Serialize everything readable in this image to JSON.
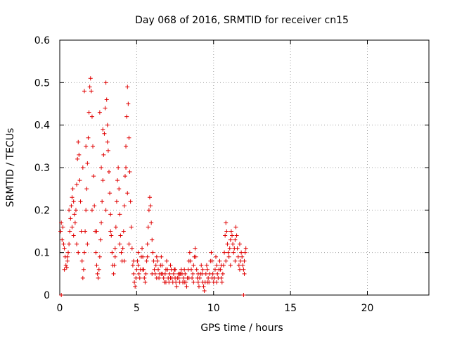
{
  "chart_data": {
    "type": "scatter",
    "title": "Day 068 of 2016, SRMTID for receiver cn15",
    "xlabel": "GPS time / hours",
    "ylabel": "SRMTID / TECUs",
    "xlim": [
      0,
      24
    ],
    "ylim": [
      0,
      0.6
    ],
    "grid": true,
    "marker": "+",
    "color": "#e00000",
    "x_ticks": [
      0,
      5,
      10,
      15,
      20
    ],
    "x_tick_labels": [
      "0",
      "5",
      "10",
      "15",
      "20"
    ],
    "y_ticks": [
      0,
      0.1,
      0.2,
      0.3,
      0.4,
      0.5,
      0.6
    ],
    "y_tick_labels": [
      "0",
      "0.1",
      "0.2",
      "0.3",
      "0.4",
      "0.5",
      "0.6"
    ],
    "series": [
      {
        "name": "SRMTID",
        "points": [
          [
            0.05,
            0.15
          ],
          [
            0.1,
            0.17
          ],
          [
            0.15,
            0.13
          ],
          [
            0.2,
            0.16
          ],
          [
            0.25,
            0.12
          ],
          [
            0.3,
            0.11
          ],
          [
            0.35,
            0.09
          ],
          [
            0.4,
            0.07
          ],
          [
            0.45,
            0.065
          ],
          [
            0.5,
            0.08
          ],
          [
            0.55,
            0.1
          ],
          [
            0.6,
            0.12
          ],
          [
            0.65,
            0.15
          ],
          [
            0.7,
            0.18
          ],
          [
            0.75,
            0.21
          ],
          [
            0.8,
            0.23
          ],
          [
            0.85,
            0.25
          ],
          [
            0.9,
            0.22
          ],
          [
            0.95,
            0.19
          ],
          [
            1.0,
            0.17
          ],
          [
            1.05,
            0.2
          ],
          [
            1.1,
            0.26
          ],
          [
            1.15,
            0.32
          ],
          [
            1.2,
            0.36
          ],
          [
            1.25,
            0.33
          ],
          [
            1.3,
            0.27
          ],
          [
            1.35,
            0.22
          ],
          [
            1.4,
            0.15
          ],
          [
            1.45,
            0.08
          ],
          [
            1.5,
            0.04
          ],
          [
            1.55,
            0.06
          ],
          [
            1.6,
            0.1
          ],
          [
            1.65,
            0.15
          ],
          [
            1.7,
            0.2
          ],
          [
            1.75,
            0.25
          ],
          [
            1.8,
            0.31
          ],
          [
            1.85,
            0.37
          ],
          [
            1.9,
            0.43
          ],
          [
            1.95,
            0.49
          ],
          [
            2.0,
            0.51
          ],
          [
            2.05,
            0.48
          ],
          [
            2.1,
            0.42
          ],
          [
            2.15,
            0.35
          ],
          [
            2.2,
            0.28
          ],
          [
            2.25,
            0.21
          ],
          [
            2.3,
            0.15
          ],
          [
            2.35,
            0.1
          ],
          [
            2.4,
            0.07
          ],
          [
            2.45,
            0.05
          ],
          [
            2.5,
            0.04
          ],
          [
            2.55,
            0.06
          ],
          [
            2.6,
            0.09
          ],
          [
            2.65,
            0.13
          ],
          [
            2.7,
            0.17
          ],
          [
            2.75,
            0.22
          ],
          [
            2.8,
            0.27
          ],
          [
            2.85,
            0.33
          ],
          [
            2.9,
            0.38
          ],
          [
            2.95,
            0.44
          ],
          [
            3.0,
            0.5
          ],
          [
            3.05,
            0.46
          ],
          [
            3.1,
            0.4
          ],
          [
            3.15,
            0.34
          ],
          [
            3.2,
            0.29
          ],
          [
            3.25,
            0.24
          ],
          [
            3.3,
            0.19
          ],
          [
            3.35,
            0.14
          ],
          [
            3.4,
            0.1
          ],
          [
            3.45,
            0.07
          ],
          [
            3.5,
            0.05
          ],
          [
            3.55,
            0.07
          ],
          [
            3.6,
            0.11
          ],
          [
            3.65,
            0.16
          ],
          [
            3.7,
            0.22
          ],
          [
            3.75,
            0.27
          ],
          [
            3.8,
            0.3
          ],
          [
            3.85,
            0.25
          ],
          [
            3.9,
            0.19
          ],
          [
            3.95,
            0.14
          ],
          [
            4.0,
            0.1
          ],
          [
            4.05,
            0.08
          ],
          [
            4.1,
            0.11
          ],
          [
            4.15,
            0.15
          ],
          [
            4.2,
            0.21
          ],
          [
            4.25,
            0.28
          ],
          [
            4.3,
            0.35
          ],
          [
            4.35,
            0.42
          ],
          [
            4.4,
            0.49
          ],
          [
            4.45,
            0.45
          ],
          [
            4.5,
            0.37
          ],
          [
            4.55,
            0.29
          ],
          [
            4.6,
            0.22
          ],
          [
            4.65,
            0.16
          ],
          [
            4.7,
            0.11
          ],
          [
            4.75,
            0.07
          ],
          [
            4.8,
            0.05
          ],
          [
            4.85,
            0.03
          ],
          [
            4.9,
            0.02
          ],
          [
            4.95,
            0.04
          ],
          [
            5.0,
            0.06
          ],
          [
            5.05,
            0.08
          ],
          [
            5.1,
            0.07
          ],
          [
            5.15,
            0.05
          ],
          [
            5.2,
            0.04
          ],
          [
            5.25,
            0.06
          ],
          [
            5.3,
            0.09
          ],
          [
            5.35,
            0.11
          ],
          [
            5.4,
            0.09
          ],
          [
            5.45,
            0.06
          ],
          [
            5.5,
            0.04
          ],
          [
            5.55,
            0.03
          ],
          [
            5.6,
            0.05
          ],
          [
            5.65,
            0.08
          ],
          [
            5.7,
            0.12
          ],
          [
            5.75,
            0.16
          ],
          [
            5.8,
            0.2
          ],
          [
            5.85,
            0.23
          ],
          [
            5.9,
            0.21
          ],
          [
            5.95,
            0.17
          ],
          [
            6.0,
            0.13
          ],
          [
            6.05,
            0.1
          ],
          [
            6.1,
            0.08
          ],
          [
            6.15,
            0.06
          ],
          [
            6.2,
            0.05
          ],
          [
            6.25,
            0.07
          ],
          [
            6.3,
            0.09
          ],
          [
            6.35,
            0.08
          ],
          [
            6.4,
            0.06
          ],
          [
            6.45,
            0.04
          ],
          [
            6.5,
            0.05
          ],
          [
            6.55,
            0.07
          ],
          [
            6.6,
            0.09
          ],
          [
            6.65,
            0.07
          ],
          [
            6.7,
            0.05
          ],
          [
            6.75,
            0.04
          ],
          [
            6.8,
            0.03
          ],
          [
            6.85,
            0.05
          ],
          [
            6.9,
            0.06
          ],
          [
            6.95,
            0.08
          ],
          [
            7.0,
            0.06
          ],
          [
            7.05,
            0.04
          ],
          [
            7.1,
            0.03
          ],
          [
            7.15,
            0.05
          ],
          [
            7.2,
            0.07
          ],
          [
            7.25,
            0.06
          ],
          [
            7.3,
            0.04
          ],
          [
            7.35,
            0.03
          ],
          [
            7.4,
            0.05
          ],
          [
            7.45,
            0.06
          ],
          [
            7.5,
            0.04
          ],
          [
            7.55,
            0.03
          ],
          [
            7.6,
            0.02
          ],
          [
            7.65,
            0.04
          ],
          [
            7.7,
            0.05
          ],
          [
            7.75,
            0.04
          ],
          [
            7.8,
            0.03
          ],
          [
            7.85,
            0.05
          ],
          [
            7.9,
            0.06
          ],
          [
            7.95,
            0.05
          ],
          [
            8.0,
            0.03
          ],
          [
            8.05,
            0.04
          ],
          [
            8.1,
            0.06
          ],
          [
            8.15,
            0.05
          ],
          [
            8.2,
            0.03
          ],
          [
            8.25,
            0.02
          ],
          [
            8.3,
            0.04
          ],
          [
            8.35,
            0.06
          ],
          [
            8.4,
            0.08
          ],
          [
            8.45,
            0.1
          ],
          [
            8.5,
            0.08
          ],
          [
            8.55,
            0.06
          ],
          [
            8.6,
            0.04
          ],
          [
            8.65,
            0.05
          ],
          [
            8.7,
            0.07
          ],
          [
            8.75,
            0.09
          ],
          [
            8.8,
            0.11
          ],
          [
            8.85,
            0.09
          ],
          [
            8.9,
            0.06
          ],
          [
            8.95,
            0.04
          ],
          [
            9.0,
            0.03
          ],
          [
            9.05,
            0.02
          ],
          [
            9.1,
            0.04
          ],
          [
            9.15,
            0.05
          ],
          [
            9.2,
            0.07
          ],
          [
            9.25,
            0.05
          ],
          [
            9.3,
            0.03
          ],
          [
            9.35,
            0.02
          ],
          [
            9.4,
            0.01
          ],
          [
            9.45,
            0.03
          ],
          [
            9.5,
            0.05
          ],
          [
            9.55,
            0.07
          ],
          [
            9.6,
            0.06
          ],
          [
            9.65,
            0.04
          ],
          [
            9.7,
            0.03
          ],
          [
            9.75,
            0.05
          ],
          [
            9.8,
            0.08
          ],
          [
            9.85,
            0.1
          ],
          [
            9.9,
            0.08
          ],
          [
            9.95,
            0.05
          ],
          [
            10.0,
            0.03
          ],
          [
            10.05,
            0.04
          ],
          [
            10.1,
            0.06
          ],
          [
            10.15,
            0.09
          ],
          [
            10.2,
            0.07
          ],
          [
            10.25,
            0.05
          ],
          [
            10.3,
            0.04
          ],
          [
            10.35,
            0.06
          ],
          [
            10.4,
            0.08
          ],
          [
            10.45,
            0.06
          ],
          [
            10.5,
            0.04
          ],
          [
            10.55,
            0.03
          ],
          [
            10.6,
            0.05
          ],
          [
            10.65,
            0.07
          ],
          [
            10.7,
            0.1
          ],
          [
            10.75,
            0.14
          ],
          [
            10.8,
            0.17
          ],
          [
            10.85,
            0.15
          ],
          [
            10.9,
            0.12
          ],
          [
            10.95,
            0.1
          ],
          [
            11.0,
            0.09
          ],
          [
            11.05,
            0.11
          ],
          [
            11.1,
            0.13
          ],
          [
            11.15,
            0.15
          ],
          [
            11.2,
            0.14
          ],
          [
            11.25,
            0.12
          ],
          [
            11.3,
            0.1
          ],
          [
            11.35,
            0.11
          ],
          [
            11.4,
            0.13
          ],
          [
            11.45,
            0.16
          ],
          [
            11.5,
            0.14
          ],
          [
            11.55,
            0.11
          ],
          [
            11.6,
            0.09
          ],
          [
            11.65,
            0.07
          ],
          [
            11.7,
            0.06
          ],
          [
            11.75,
            0.08
          ],
          [
            11.8,
            0.1
          ],
          [
            11.85,
            0.09
          ],
          [
            11.9,
            0.07
          ],
          [
            11.95,
            0.06
          ],
          [
            12.0,
            0.08
          ],
          [
            12.05,
            0.1
          ],
          [
            12.1,
            0.11
          ],
          [
            0.1,
            0.0
          ],
          [
            11.95,
            0.0
          ],
          [
            0.3,
            0.06
          ],
          [
            0.6,
            0.2
          ],
          [
            0.9,
            0.14
          ],
          [
            1.2,
            0.1
          ],
          [
            1.5,
            0.3
          ],
          [
            1.8,
            0.12
          ],
          [
            2.1,
            0.2
          ],
          [
            2.4,
            0.15
          ],
          [
            2.7,
            0.3
          ],
          [
            3.0,
            0.2
          ],
          [
            3.3,
            0.15
          ],
          [
            3.6,
            0.09
          ],
          [
            3.9,
            0.12
          ],
          [
            4.2,
            0.08
          ],
          [
            4.5,
            0.12
          ],
          [
            4.8,
            0.08
          ],
          [
            5.1,
            0.1
          ],
          [
            5.4,
            0.06
          ],
          [
            5.7,
            0.09
          ],
          [
            6.0,
            0.05
          ],
          [
            6.3,
            0.04
          ],
          [
            6.6,
            0.05
          ],
          [
            6.9,
            0.03
          ],
          [
            7.2,
            0.04
          ],
          [
            7.5,
            0.06
          ],
          [
            7.8,
            0.05
          ],
          [
            8.1,
            0.03
          ],
          [
            8.4,
            0.04
          ],
          [
            8.7,
            0.03
          ],
          [
            9.0,
            0.05
          ],
          [
            9.3,
            0.06
          ],
          [
            9.6,
            0.03
          ],
          [
            9.9,
            0.04
          ],
          [
            10.2,
            0.03
          ],
          [
            10.5,
            0.07
          ],
          [
            10.8,
            0.08
          ],
          [
            11.1,
            0.07
          ],
          [
            11.4,
            0.08
          ],
          [
            11.7,
            0.12
          ],
          [
            12.0,
            0.05
          ],
          [
            0.5,
            0.09
          ],
          [
            0.8,
            0.16
          ],
          [
            1.1,
            0.12
          ],
          [
            1.6,
            0.48
          ],
          [
            1.7,
            0.35
          ],
          [
            2.6,
            0.43
          ],
          [
            2.8,
            0.39
          ],
          [
            3.1,
            0.36
          ],
          [
            4.3,
            0.3
          ],
          [
            4.4,
            0.24
          ]
        ]
      }
    ]
  }
}
